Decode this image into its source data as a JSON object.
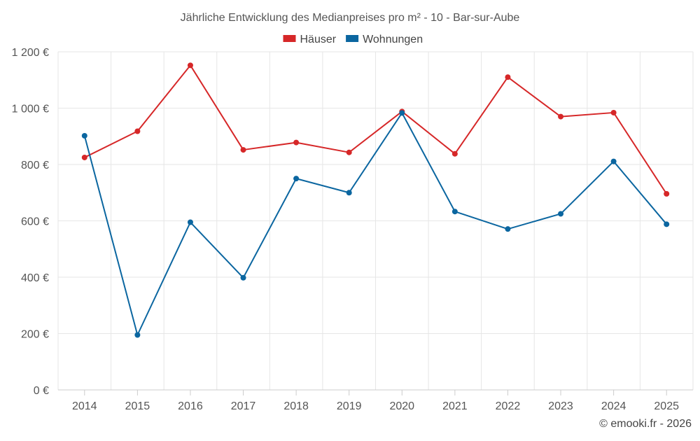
{
  "chart_data": {
    "type": "line",
    "title": "Jährliche Entwicklung des Medianpreises pro m² - 10 - Bar-sur-Aube",
    "categories": [
      "2014",
      "2015",
      "2016",
      "2017",
      "2018",
      "2019",
      "2020",
      "2021",
      "2022",
      "2023",
      "2024",
      "2025"
    ],
    "ylim": [
      0,
      1200
    ],
    "yticks": [
      0,
      200,
      400,
      600,
      800,
      1000,
      1200
    ],
    "ytick_labels": [
      "0 €",
      "200 €",
      "400 €",
      "600 €",
      "800 €",
      "1 000 €",
      "1 200 €"
    ],
    "xlabel": "",
    "ylabel": "",
    "grid": true,
    "legend_position": "top-center",
    "series": [
      {
        "name": "Häuser",
        "color": "#d62728",
        "values": [
          825,
          918,
          1152,
          852,
          878,
          843,
          988,
          838,
          1110,
          970,
          984,
          696
        ]
      },
      {
        "name": "Wohnungen",
        "color": "#0b66a0",
        "values": [
          902,
          195,
          595,
          398,
          750,
          700,
          983,
          633,
          571,
          625,
          811,
          588
        ]
      }
    ]
  },
  "credit": "© emooki.fr - 2026"
}
